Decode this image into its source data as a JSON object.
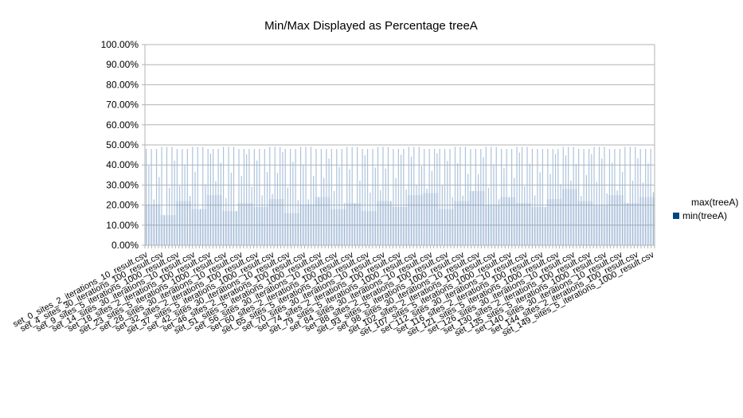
{
  "chart_data": {
    "type": "area",
    "title": "Min/Max Displayed as Percentage treeA",
    "xlabel": "",
    "ylabel": "",
    "ylim": [
      0,
      100
    ],
    "yticks": [
      "0.00%",
      "10.00%",
      "20.00%",
      "30.00%",
      "40.00%",
      "50.00%",
      "60.00%",
      "70.00%",
      "80.00%",
      "90.00%",
      "100.00%"
    ],
    "grid": true,
    "legend_position": "right",
    "x_tick_labels": [
      "set_0_sites_2_iterations_10_result.csv",
      "set_4_sites_30_iterations_100_result.csv",
      "set_9_sites_5_iterations_1000_result.csv",
      "set_14_sites_30_iterations_10_result.csv",
      "set_18_sites_2_iterations_100_result.csv",
      "set_23_sites_5_iterations_1000_result.csv",
      "set_28_sites_30_iterations_10_result.csv",
      "set_32_sites_2_iterations_100_result.csv",
      "set_37_sites_5_iterations_1000_result.csv",
      "set_42_sites_30_iterations_10_result.csv",
      "set_46_sites_2_iterations_100_result.csv",
      "set_51_sites_5_iterations_1000_result.csv",
      "set_56_sites_30_iterations_10_result.csv",
      "set_60_sites_2_iterations_100_result.csv",
      "set_65_sites_5_iterations_1000_result.csv",
      "set_70_sites_30_iterations_10_result.csv",
      "set_74_sites_2_iterations_100_result.csv",
      "set_79_sites_5_iterations_1000_result.csv",
      "set_84_sites_30_iterations_10_result.csv",
      "set_88_sites_2_iterations_100_result.csv",
      "set_93_sites_5_iterations_1000_result.csv",
      "set_98_sites_30_iterations_10_result.csv",
      "set_102_sites_2_iterations_100_result.csv",
      "set_107_sites_5_iterations_1000_result.csv",
      "set_112_sites_30_iterations_10_result.csv",
      "set_116_sites_2_iterations_100_result.csv",
      "set_121_sites_5_iterations_1000_result.csv",
      "set_126_sites_30_iterations_10_result.csv",
      "set_130_sites_2_iterations_100_result.csv",
      "set_135_sites_5_iterations_1000_result.csv",
      "set_140_sites_30_iterations_10_result.csv",
      "set_144_sites_2_iterations_100_result.csv",
      "set_149_sites_5_iterations_1000_result.csv"
    ],
    "series": [
      {
        "name": "max(treeA)",
        "color": "#ffffff",
        "values": [
          48,
          49,
          48,
          49,
          48,
          49,
          48,
          48,
          49,
          48,
          49,
          48,
          48,
          49,
          48,
          49,
          48,
          49,
          48,
          48,
          49,
          48,
          49,
          48,
          49,
          48,
          48,
          49,
          48,
          49,
          48,
          49,
          48
        ]
      },
      {
        "name": "min(treeA)",
        "color": "#004586",
        "values": [
          20,
          15,
          22,
          18,
          25,
          17,
          21,
          19,
          23,
          16,
          20,
          24,
          18,
          21,
          17,
          22,
          19,
          25,
          26,
          18,
          22,
          27,
          20,
          24,
          21,
          19,
          23,
          28,
          22,
          20,
          25,
          21,
          24
        ]
      }
    ]
  }
}
